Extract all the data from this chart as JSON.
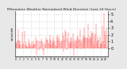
{
  "title": "Milwaukee Weather Normalized Wind Direction (Last 24 Hours)",
  "ylabel_left": "wind dir",
  "background_color": "#e8e8e8",
  "plot_bg_color": "#ffffff",
  "bar_color": "#ff0000",
  "grid_color": "#bbbbbb",
  "ymin": -1.2,
  "ymax": 5.5,
  "yticks": [
    0,
    1,
    2,
    3,
    4,
    5
  ],
  "num_points": 144,
  "seed": 42
}
